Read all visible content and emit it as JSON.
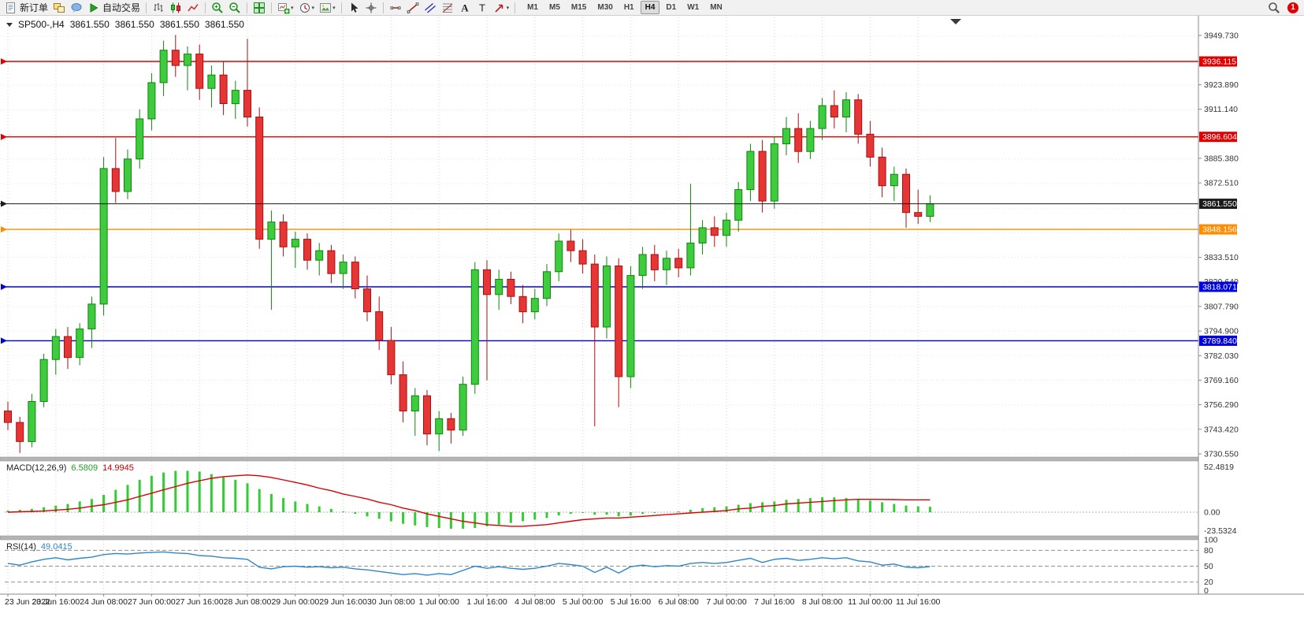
{
  "toolbar": {
    "icons": [
      {
        "name": "new-order-button",
        "shape": "doc",
        "label": "新订单"
      },
      {
        "name": "chart-windows-icon",
        "shape": "windows"
      },
      {
        "name": "community-icon",
        "shape": "bubble"
      },
      {
        "name": "auto-trading-button",
        "shape": "play",
        "label": "自动交易"
      },
      {
        "separator": true
      },
      {
        "name": "bar-chart-icon",
        "shape": "bars"
      },
      {
        "name": "candlestick-chart-icon",
        "shape": "candle"
      },
      {
        "name": "line-chart-icon",
        "shape": "linechart"
      },
      {
        "separator": true
      },
      {
        "name": "zoom-in-icon",
        "shape": "zoomin"
      },
      {
        "name": "zoom-out-icon",
        "shape": "zoomout"
      },
      {
        "separator": true
      },
      {
        "name": "tile-windows-icon",
        "shape": "tiles"
      },
      {
        "separator": true
      },
      {
        "name": "new-chart-icon",
        "shape": "newchart",
        "dropdown": true
      },
      {
        "name": "profiles-icon",
        "shape": "clock",
        "dropdown": true
      },
      {
        "name": "template-icon",
        "shape": "template",
        "dropdown": true
      },
      {
        "separator": true
      },
      {
        "name": "cursor-icon",
        "shape": "cursor"
      },
      {
        "name": "crosshair-icon",
        "shape": "cross"
      },
      {
        "separator": true
      },
      {
        "name": "horizontal-line-icon",
        "shape": "hline"
      },
      {
        "name": "trendline-icon",
        "shape": "trend"
      },
      {
        "name": "channel-icon",
        "shape": "channel"
      },
      {
        "name": "fibonacci-icon",
        "shape": "fibo"
      },
      {
        "name": "text-icon",
        "shape": "textA"
      },
      {
        "name": "label-icon",
        "shape": "labelT"
      },
      {
        "name": "shapes-icon",
        "shape": "arrowshape",
        "dropdown": true
      },
      {
        "separator": true
      }
    ],
    "timeframes": [
      {
        "label": "M1"
      },
      {
        "label": "M5"
      },
      {
        "label": "M15"
      },
      {
        "label": "M30"
      },
      {
        "label": "H1"
      },
      {
        "label": "H4",
        "active": true
      },
      {
        "label": "D1"
      },
      {
        "label": "W1"
      },
      {
        "label": "MN"
      }
    ],
    "right_icon": {
      "name": "search-icon",
      "shape": "search"
    },
    "notification_count": "1"
  },
  "chart": {
    "title": {
      "symbol_period": "SP500-,H4",
      "open": "3861.550",
      "high": "3861.550",
      "low": "3861.550",
      "close": "3861.550"
    },
    "price_axis": {
      "labels": [
        "3949.730",
        "3923.890",
        "3911.140",
        "3885.380",
        "3872.510",
        "3833.510",
        "3820.640",
        "3807.790",
        "3794.900",
        "3782.030",
        "3769.160",
        "3756.290",
        "3743.420",
        "3730.550"
      ]
    },
    "hlines": [
      {
        "price": "3936.115",
        "color": "#e00000"
      },
      {
        "price": "3896.604",
        "color": "#e00000"
      },
      {
        "price": "3848.156",
        "color": "#ff8c00"
      },
      {
        "price": "3818.071",
        "color": "#0000dd"
      },
      {
        "price": "3789.840",
        "color": "#0000dd"
      }
    ],
    "current_price": {
      "value": "3861.550",
      "color": "#1a1a1a"
    },
    "time_labels": [
      "23 Jun 2022",
      "23 Jun 16:00",
      "24 Jun 08:00",
      "27 Jun 00:00",
      "27 Jun 16:00",
      "28 Jun 08:00",
      "29 Jun 00:00",
      "29 Jun 16:00",
      "30 Jun 08:00",
      "1 Jul 00:00",
      "1 Jul 16:00",
      "4 Jul 08:00",
      "5 Jul 00:00",
      "5 Jul 16:00",
      "6 Jul 08:00",
      "7 Jul 00:00",
      "7 Jul 16:00",
      "8 Jul 08:00",
      "11 Jul 00:00",
      "11 Jul 16:00"
    ]
  },
  "chart_data": {
    "type": "candlestick",
    "symbol": "SP500-",
    "timeframe": "H4",
    "ylim": [
      3730.55,
      3949.73
    ],
    "candles": [
      [
        3753,
        3758,
        3743,
        3747
      ],
      [
        3747,
        3750,
        3731,
        3737
      ],
      [
        3737,
        3762,
        3734,
        3758
      ],
      [
        3758,
        3783,
        3755,
        3780
      ],
      [
        3780,
        3796,
        3772,
        3792
      ],
      [
        3792,
        3797,
        3775,
        3781
      ],
      [
        3781,
        3799,
        3777,
        3796
      ],
      [
        3796,
        3813,
        3786,
        3809
      ],
      [
        3809,
        3886,
        3803,
        3880
      ],
      [
        3880,
        3896,
        3862,
        3868
      ],
      [
        3868,
        3890,
        3864,
        3885
      ],
      [
        3885,
        3911,
        3880,
        3906
      ],
      [
        3906,
        3930,
        3900,
        3925
      ],
      [
        3925,
        3947,
        3918,
        3942
      ],
      [
        3942,
        3950,
        3928,
        3934
      ],
      [
        3934,
        3944,
        3921,
        3940
      ],
      [
        3940,
        3945,
        3916,
        3922
      ],
      [
        3922,
        3934,
        3912,
        3929
      ],
      [
        3929,
        3936,
        3908,
        3914
      ],
      [
        3914,
        3926,
        3906,
        3921
      ],
      [
        3921,
        3948,
        3902,
        3907
      ],
      [
        3907,
        3912,
        3838,
        3843
      ],
      [
        3843,
        3858,
        3806,
        3852
      ],
      [
        3852,
        3856,
        3834,
        3839
      ],
      [
        3839,
        3847,
        3828,
        3843
      ],
      [
        3843,
        3846,
        3827,
        3832
      ],
      [
        3832,
        3841,
        3824,
        3837
      ],
      [
        3837,
        3840,
        3820,
        3825
      ],
      [
        3825,
        3835,
        3817,
        3831
      ],
      [
        3831,
        3834,
        3812,
        3817
      ],
      [
        3817,
        3824,
        3800,
        3805
      ],
      [
        3805,
        3813,
        3785,
        3790
      ],
      [
        3790,
        3797,
        3767,
        3772
      ],
      [
        3772,
        3779,
        3747,
        3753
      ],
      [
        3753,
        3765,
        3740,
        3761
      ],
      [
        3761,
        3764,
        3735,
        3741
      ],
      [
        3741,
        3753,
        3732,
        3749
      ],
      [
        3749,
        3752,
        3736,
        3743
      ],
      [
        3743,
        3771,
        3740,
        3767
      ],
      [
        3767,
        3831,
        3762,
        3827
      ],
      [
        3827,
        3832,
        3769,
        3814
      ],
      [
        3814,
        3827,
        3806,
        3822
      ],
      [
        3822,
        3826,
        3809,
        3813
      ],
      [
        3813,
        3819,
        3799,
        3805
      ],
      [
        3805,
        3817,
        3801,
        3812
      ],
      [
        3812,
        3830,
        3808,
        3826
      ],
      [
        3826,
        3846,
        3821,
        3842
      ],
      [
        3842,
        3848,
        3831,
        3837
      ],
      [
        3837,
        3843,
        3825,
        3830
      ],
      [
        3830,
        3835,
        3745,
        3797
      ],
      [
        3797,
        3834,
        3791,
        3829
      ],
      [
        3829,
        3833,
        3755,
        3771
      ],
      [
        3771,
        3829,
        3765,
        3824
      ],
      [
        3824,
        3839,
        3817,
        3835
      ],
      [
        3835,
        3840,
        3821,
        3827
      ],
      [
        3827,
        3837,
        3819,
        3833
      ],
      [
        3833,
        3838,
        3823,
        3828
      ],
      [
        3828,
        3872,
        3824,
        3841
      ],
      [
        3841,
        3853,
        3835,
        3849
      ],
      [
        3849,
        3855,
        3839,
        3845
      ],
      [
        3845,
        3857,
        3839,
        3853
      ],
      [
        3853,
        3873,
        3847,
        3869
      ],
      [
        3869,
        3893,
        3863,
        3889
      ],
      [
        3889,
        3895,
        3857,
        3863
      ],
      [
        3863,
        3897,
        3859,
        3893
      ],
      [
        3893,
        3907,
        3887,
        3901
      ],
      [
        3901,
        3909,
        3883,
        3889
      ],
      [
        3889,
        3905,
        3885,
        3901
      ],
      [
        3901,
        3917,
        3895,
        3913
      ],
      [
        3913,
        3921,
        3901,
        3907
      ],
      [
        3907,
        3920,
        3899,
        3916
      ],
      [
        3916,
        3919,
        3893,
        3898
      ],
      [
        3898,
        3905,
        3881,
        3886
      ],
      [
        3886,
        3891,
        3865,
        3871
      ],
      [
        3871,
        3881,
        3863,
        3877
      ],
      [
        3877,
        3880,
        3849,
        3857
      ],
      [
        3857,
        3869,
        3851,
        3855
      ],
      [
        3855,
        3866,
        3852,
        3861.55
      ]
    ],
    "macd": {
      "label": "MACD(12,26,9)",
      "value": "6.5809",
      "signal_value": "14.9945",
      "axis": [
        "52.4819",
        "0.00",
        "-23.5324"
      ],
      "histogram": [
        2,
        3,
        4,
        6,
        8,
        10,
        13,
        16,
        21,
        27,
        33,
        39,
        44,
        48,
        50,
        50,
        49,
        46,
        43,
        39,
        35,
        28,
        22,
        17,
        13,
        10,
        7,
        4,
        1,
        -2,
        -5,
        -8,
        -11,
        -14,
        -16,
        -18,
        -19,
        -20,
        -20,
        -19,
        -17,
        -15,
        -13,
        -11,
        -9,
        -7,
        -4,
        -2,
        -1,
        -3,
        -3,
        -5,
        -4,
        -2,
        -1,
        0,
        1,
        3,
        5,
        6,
        7,
        9,
        11,
        12,
        13,
        15,
        16,
        17,
        18,
        18,
        17,
        16,
        14,
        12,
        10,
        8,
        7,
        6.58
      ],
      "signal": [
        0,
        0.5,
        1,
        1.5,
        2.5,
        3.5,
        5,
        7,
        9,
        12,
        15,
        19,
        23,
        27,
        31,
        35,
        38,
        41,
        43,
        44,
        45,
        44,
        42,
        39,
        36,
        33,
        29,
        26,
        22,
        19,
        16,
        12,
        9,
        5,
        2,
        -2,
        -5,
        -8,
        -11,
        -13,
        -15,
        -16,
        -17,
        -17,
        -16,
        -15,
        -13,
        -11,
        -9,
        -8,
        -7,
        -7,
        -6,
        -5,
        -4,
        -3,
        -2,
        -1,
        0,
        1,
        2,
        4,
        5,
        7,
        8,
        10,
        11,
        12,
        13,
        14,
        15,
        15.5,
        15.5,
        15.4,
        15.2,
        15,
        15,
        14.99
      ]
    },
    "rsi": {
      "label": "RSI(14)",
      "value": "49.0415",
      "axis": [
        "100",
        "80",
        "50",
        "20",
        "0"
      ],
      "levels": [
        80,
        50,
        20
      ],
      "values": [
        55,
        52,
        58,
        63,
        66,
        62,
        65,
        67,
        72,
        74,
        73,
        75,
        76,
        77,
        75,
        74,
        70,
        69,
        66,
        65,
        63,
        48,
        45,
        49,
        50,
        48,
        49,
        47,
        48,
        45,
        43,
        40,
        37,
        34,
        36,
        33,
        36,
        34,
        42,
        50,
        46,
        49,
        46,
        44,
        46,
        50,
        55,
        53,
        50,
        38,
        48,
        37,
        49,
        52,
        49,
        51,
        50,
        55,
        57,
        55,
        57,
        61,
        65,
        57,
        63,
        65,
        61,
        63,
        66,
        64,
        66,
        60,
        58,
        52,
        54,
        48,
        47,
        49.0415
      ]
    }
  }
}
